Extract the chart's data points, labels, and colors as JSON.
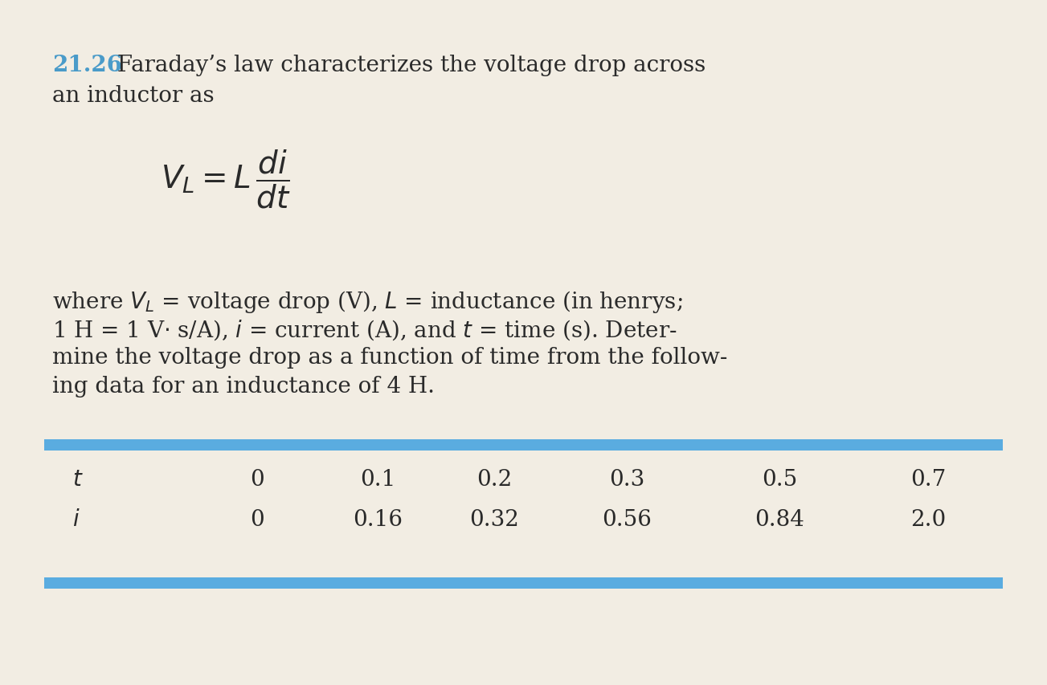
{
  "background_color": "#f2ede3",
  "problem_number": "21.26",
  "problem_number_color": "#4a9bc9",
  "line1_text": " Faraday’s law characterizes the voltage drop across",
  "line2_text": "an inductor as",
  "formula": "$V_L = L\\,\\dfrac{di}{dt}$",
  "desc_line1": "where $V_L$ = voltage drop (V), $L$ = inductance (in henrys;",
  "desc_line2": "1 H = 1 V$\\cdot$ s/A), $i$ = current (A), and $t$ = time (s). Deter-",
  "desc_line3": "mine the voltage drop as a function of time from the follow-",
  "desc_line4": "ing data for an inductance of 4 H.",
  "table_t_label": "$t$",
  "table_i_label": "$i$",
  "table_t_values": [
    "0",
    "0.1",
    "0.2",
    "0.3",
    "0.5",
    "0.7"
  ],
  "table_i_values": [
    "0",
    "0.16",
    "0.32",
    "0.56",
    "0.84",
    "2.0"
  ],
  "band_color": "#5aace0",
  "font_size_main": 20,
  "font_size_formula": 28,
  "font_size_table": 20,
  "text_color": "#2a2a2a"
}
